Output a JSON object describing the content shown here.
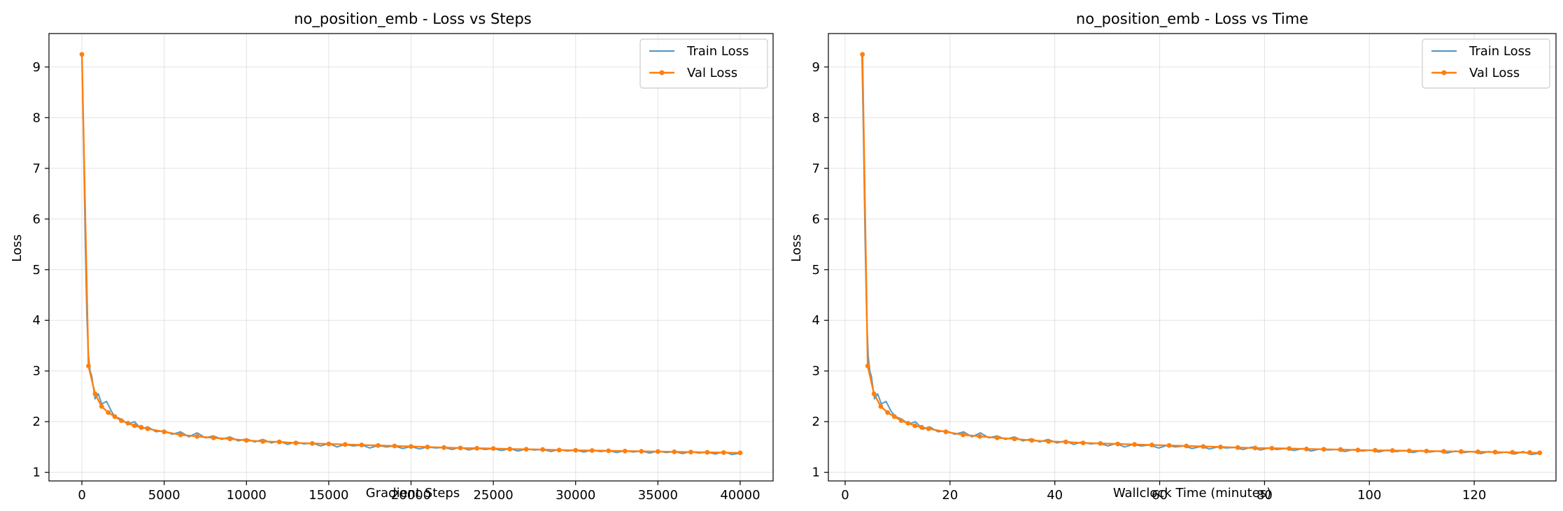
{
  "colors": {
    "train": "#1f77b4",
    "val": "#ff7f0e",
    "grid": "#b0b0b0",
    "axes": "#000000"
  },
  "chart_data": [
    {
      "type": "line",
      "title": "no_position_emb - Loss vs Steps",
      "xlabel": "Gradient Steps",
      "ylabel": "Loss",
      "xlim": [
        -2000,
        42000
      ],
      "ylim": [
        0.83,
        9.66
      ],
      "xticks": [
        0,
        5000,
        10000,
        15000,
        20000,
        25000,
        30000,
        35000,
        40000
      ],
      "yticks": [
        1,
        2,
        3,
        4,
        5,
        6,
        7,
        8,
        9
      ],
      "grid": true,
      "legend_position": "top-right",
      "series": [
        {
          "name": "Train Loss",
          "style": "line",
          "x": [
            0,
            100,
            200,
            300,
            400,
            500,
            600,
            800,
            1000,
            1200,
            1500,
            1800,
            2000,
            2400,
            2800,
            3200,
            3600,
            4000,
            4500,
            5000,
            5500,
            6000,
            6500,
            7000,
            7500,
            8000,
            8500,
            9000,
            9500,
            10000,
            10500,
            11000,
            11500,
            12000,
            12500,
            13000,
            13500,
            14000,
            14500,
            15000,
            15500,
            16000,
            16500,
            17000,
            17500,
            18000,
            18500,
            19000,
            19500,
            20000,
            20500,
            21000,
            21500,
            22000,
            22500,
            23000,
            23500,
            24000,
            24500,
            25000,
            25500,
            26000,
            26500,
            27000,
            27500,
            28000,
            28500,
            29000,
            29500,
            30000,
            30500,
            31000,
            31500,
            32000,
            32500,
            33000,
            33500,
            34000,
            34500,
            35000,
            35500,
            36000,
            36500,
            37000,
            37500,
            38000,
            38500,
            39000,
            39500,
            40000
          ],
          "y": [
            9.25,
            7.6,
            5.6,
            4.1,
            3.3,
            3.0,
            2.9,
            2.45,
            2.55,
            2.35,
            2.4,
            2.2,
            2.1,
            2.05,
            1.95,
            2.0,
            1.85,
            1.9,
            1.8,
            1.82,
            1.75,
            1.8,
            1.7,
            1.78,
            1.68,
            1.72,
            1.65,
            1.7,
            1.62,
            1.66,
            1.6,
            1.65,
            1.58,
            1.62,
            1.55,
            1.6,
            1.56,
            1.58,
            1.52,
            1.57,
            1.5,
            1.55,
            1.52,
            1.54,
            1.48,
            1.53,
            1.5,
            1.52,
            1.47,
            1.51,
            1.46,
            1.5,
            1.48,
            1.49,
            1.45,
            1.5,
            1.44,
            1.48,
            1.45,
            1.47,
            1.43,
            1.47,
            1.42,
            1.46,
            1.44,
            1.45,
            1.41,
            1.45,
            1.42,
            1.44,
            1.4,
            1.44,
            1.41,
            1.43,
            1.39,
            1.43,
            1.4,
            1.42,
            1.38,
            1.42,
            1.39,
            1.41,
            1.37,
            1.41,
            1.38,
            1.4,
            1.36,
            1.41,
            1.35,
            1.38
          ]
        },
        {
          "name": "Val Loss",
          "style": "line-marker",
          "x": [
            0,
            400,
            800,
            1200,
            1600,
            2000,
            2400,
            2800,
            3200,
            3600,
            4000,
            5000,
            6000,
            7000,
            8000,
            9000,
            10000,
            11000,
            12000,
            13000,
            14000,
            15000,
            16000,
            17000,
            18000,
            19000,
            20000,
            21000,
            22000,
            23000,
            24000,
            25000,
            26000,
            27000,
            28000,
            29000,
            30000,
            31000,
            32000,
            33000,
            34000,
            35000,
            36000,
            37000,
            38000,
            39000,
            40000
          ],
          "y": [
            9.25,
            3.1,
            2.55,
            2.3,
            2.18,
            2.1,
            2.02,
            1.97,
            1.92,
            1.89,
            1.86,
            1.8,
            1.74,
            1.71,
            1.68,
            1.66,
            1.63,
            1.61,
            1.6,
            1.58,
            1.57,
            1.56,
            1.55,
            1.54,
            1.53,
            1.52,
            1.51,
            1.5,
            1.49,
            1.48,
            1.475,
            1.47,
            1.46,
            1.455,
            1.45,
            1.44,
            1.435,
            1.43,
            1.425,
            1.42,
            1.415,
            1.41,
            1.405,
            1.4,
            1.395,
            1.39,
            1.385
          ]
        }
      ]
    },
    {
      "type": "line",
      "title": "no_position_emb - Loss vs Time",
      "xlabel": "Wallclock Time (minutes)",
      "ylabel": "Loss",
      "xlim": [
        -3.2,
        135.6
      ],
      "ylim": [
        0.83,
        9.66
      ],
      "xticks": [
        0,
        20,
        40,
        60,
        80,
        100,
        120
      ],
      "yticks": [
        1,
        2,
        3,
        4,
        5,
        6,
        7,
        8,
        9
      ],
      "grid": true,
      "legend_position": "top-right",
      "series": [
        {
          "name": "Train Loss",
          "style": "line",
          "x": [
            3.2,
            3.5,
            3.8,
            4.1,
            4.4,
            4.7,
            5.0,
            5.6,
            6.2,
            6.9,
            7.8,
            8.8,
            9.6,
            10.8,
            12.1,
            13.4,
            14.8,
            16.1,
            17.7,
            19.3,
            20.9,
            22.6,
            24.2,
            25.8,
            27.4,
            29.0,
            30.6,
            32.3,
            33.9,
            35.5,
            37.1,
            38.7,
            40.4,
            42.0,
            43.6,
            45.2,
            46.8,
            48.4,
            50.1,
            51.7,
            53.3,
            54.9,
            56.5,
            58.1,
            59.8,
            61.4,
            63.0,
            64.6,
            66.2,
            67.9,
            69.5,
            71.1,
            72.7,
            74.3,
            75.9,
            77.6,
            79.2,
            80.8,
            82.4,
            84.0,
            85.6,
            87.3,
            88.9,
            90.5,
            92.1,
            93.7,
            95.3,
            97.0,
            98.6,
            100.2,
            101.8,
            103.4,
            105.1,
            106.7,
            108.3,
            109.9,
            111.5,
            113.1,
            114.8,
            116.4,
            118.0,
            119.6,
            121.2,
            122.8,
            124.5,
            126.1,
            127.7,
            129.3,
            130.9,
            132.5
          ],
          "y": [
            9.25,
            7.6,
            5.6,
            4.1,
            3.3,
            3.0,
            2.9,
            2.45,
            2.55,
            2.35,
            2.4,
            2.2,
            2.1,
            2.05,
            1.95,
            2.0,
            1.85,
            1.9,
            1.8,
            1.82,
            1.75,
            1.8,
            1.7,
            1.78,
            1.68,
            1.72,
            1.65,
            1.7,
            1.62,
            1.66,
            1.6,
            1.65,
            1.58,
            1.62,
            1.55,
            1.6,
            1.56,
            1.58,
            1.52,
            1.57,
            1.5,
            1.55,
            1.52,
            1.54,
            1.48,
            1.53,
            1.5,
            1.52,
            1.47,
            1.51,
            1.46,
            1.5,
            1.48,
            1.49,
            1.45,
            1.5,
            1.44,
            1.48,
            1.45,
            1.47,
            1.43,
            1.47,
            1.42,
            1.46,
            1.44,
            1.45,
            1.41,
            1.45,
            1.42,
            1.44,
            1.4,
            1.44,
            1.41,
            1.43,
            1.39,
            1.43,
            1.4,
            1.42,
            1.38,
            1.42,
            1.39,
            1.41,
            1.37,
            1.41,
            1.38,
            1.4,
            1.36,
            1.41,
            1.35,
            1.38
          ]
        },
        {
          "name": "Val Loss",
          "style": "line-marker",
          "x": [
            3.3,
            4.3,
            5.5,
            6.8,
            8.1,
            9.4,
            10.7,
            12.0,
            13.3,
            14.6,
            15.9,
            19.2,
            22.5,
            25.7,
            29.0,
            32.3,
            35.6,
            38.8,
            42.1,
            45.4,
            48.7,
            52.0,
            55.2,
            58.5,
            61.8,
            65.1,
            68.3,
            71.6,
            74.9,
            78.2,
            81.4,
            84.7,
            88.0,
            91.3,
            94.5,
            97.8,
            101.1,
            104.4,
            107.6,
            110.9,
            114.2,
            117.5,
            120.7,
            124.0,
            127.3,
            130.6,
            132.5
          ],
          "y": [
            9.25,
            3.1,
            2.55,
            2.3,
            2.18,
            2.1,
            2.02,
            1.97,
            1.92,
            1.89,
            1.86,
            1.8,
            1.74,
            1.71,
            1.68,
            1.66,
            1.63,
            1.61,
            1.6,
            1.58,
            1.57,
            1.56,
            1.55,
            1.54,
            1.53,
            1.52,
            1.51,
            1.5,
            1.49,
            1.48,
            1.475,
            1.47,
            1.46,
            1.455,
            1.45,
            1.44,
            1.435,
            1.43,
            1.425,
            1.42,
            1.415,
            1.41,
            1.405,
            1.4,
            1.395,
            1.39,
            1.385
          ]
        }
      ]
    }
  ]
}
